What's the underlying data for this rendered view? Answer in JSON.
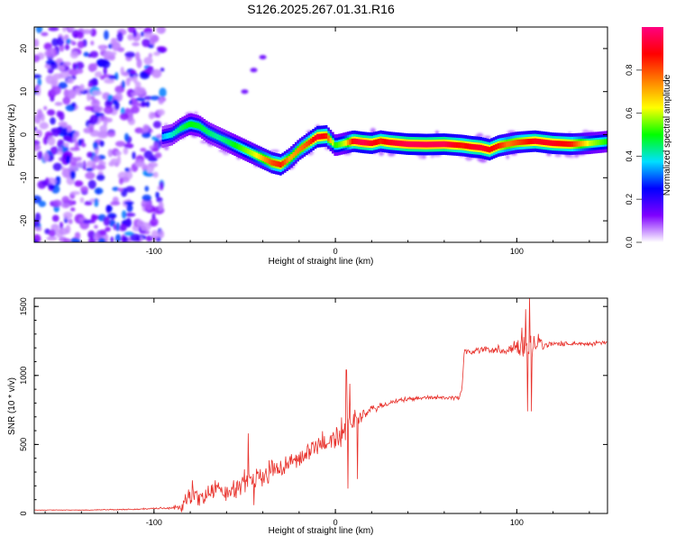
{
  "title": "S126.2025.267.01.31.R16",
  "chart_data": [
    {
      "type": "heatmap",
      "name": "spectrogram",
      "xlabel": "Height of straight line (km)",
      "ylabel": "Frequency (Hz)",
      "xlim": [
        -166,
        150
      ],
      "ylim": [
        -25,
        25
      ],
      "xticks": [
        -100,
        0,
        100
      ],
      "yticks": [
        -20,
        -10,
        0,
        10,
        20
      ],
      "xtick_labels": [
        "-100",
        "0",
        "100"
      ],
      "ytick_labels": [
        "-20",
        "-10",
        "0",
        "10",
        "20"
      ],
      "colorbar": {
        "label": "Normalized spectral amplitude",
        "range": [
          0,
          1
        ],
        "ticks": [
          0.0,
          0.2,
          0.4,
          0.6,
          0.8
        ],
        "tick_labels": [
          "0.0",
          "0.2",
          "0.4",
          "0.6",
          "0.8"
        ],
        "colors": [
          "#ffffff",
          "#7f00ff",
          "#0000ff",
          "#00e0ff",
          "#00ff00",
          "#ffff00",
          "#ff8000",
          "#ff0000",
          "#ff0080"
        ]
      },
      "noise_region_x": [
        -166,
        -95
      ],
      "ridge": {
        "x": [
          -95,
          -90,
          -85,
          -80,
          -75,
          -70,
          -65,
          -60,
          -55,
          -50,
          -45,
          -40,
          -35,
          -30,
          -25,
          -20,
          -15,
          -10,
          -5,
          0,
          5,
          10,
          15,
          20,
          25,
          30,
          40,
          50,
          60,
          70,
          75,
          80,
          85,
          90,
          95,
          100,
          110,
          120,
          130,
          140,
          150
        ],
        "frequency": [
          -0.5,
          0,
          1.5,
          2.5,
          2,
          0.5,
          -0.5,
          -1.5,
          -2.5,
          -3.5,
          -4.5,
          -5.5,
          -6.5,
          -7,
          -5.5,
          -3.5,
          -2,
          -0.5,
          -0.3,
          -2.5,
          -2,
          -1.5,
          -1.8,
          -2,
          -1.5,
          -1.8,
          -2.2,
          -2.3,
          -2.2,
          -2.5,
          -2.8,
          -3,
          -3.5,
          -2.6,
          -2.2,
          -1.8,
          -1.5,
          -2,
          -2.2,
          -2,
          -1.6
        ],
        "amplitude": [
          0.35,
          0.4,
          0.45,
          0.5,
          0.48,
          0.45,
          0.42,
          0.45,
          0.5,
          0.55,
          0.6,
          0.7,
          0.8,
          0.85,
          0.7,
          0.75,
          0.8,
          0.92,
          0.85,
          0.5,
          0.6,
          0.9,
          0.95,
          0.9,
          0.85,
          0.9,
          0.95,
          0.95,
          0.95,
          0.85,
          0.9,
          0.92,
          0.88,
          0.85,
          0.75,
          0.8,
          0.9,
          0.9,
          0.85,
          0.6,
          0.5
        ]
      },
      "artifacts": [
        {
          "x": -50,
          "frequency": 10
        },
        {
          "x": -45,
          "frequency": 15
        },
        {
          "x": -40,
          "frequency": 18
        }
      ]
    },
    {
      "type": "line",
      "name": "snr",
      "xlabel": "Height of straight line (km)",
      "ylabel": "SNR (10 * v/v)",
      "xlim": [
        -166,
        150
      ],
      "ylim": [
        0,
        1560
      ],
      "xticks": [
        -100,
        0,
        100
      ],
      "yticks": [
        0,
        500,
        1000,
        1500
      ],
      "xtick_labels": [
        "-100",
        "0",
        "100"
      ],
      "ytick_labels": [
        "0",
        "500",
        "1000",
        "1500"
      ],
      "color": "#e8312b",
      "series": [
        {
          "name": "SNR",
          "x": [
            -166,
            -140,
            -110,
            -90,
            -85,
            -80,
            -75,
            -70,
            -65,
            -60,
            -55,
            -50,
            -45,
            -40,
            -35,
            -30,
            -25,
            -20,
            -15,
            -10,
            -5,
            0,
            5,
            10,
            15,
            20,
            25,
            30,
            40,
            50,
            60,
            68,
            70,
            71,
            75,
            80,
            90,
            100,
            103,
            106,
            110,
            115,
            120,
            130,
            140,
            150
          ],
          "y": [
            25,
            25,
            30,
            40,
            55,
            130,
            110,
            150,
            180,
            140,
            170,
            260,
            230,
            250,
            340,
            310,
            380,
            400,
            430,
            500,
            520,
            540,
            610,
            680,
            710,
            750,
            780,
            800,
            830,
            840,
            840,
            840,
            920,
            1180,
            1170,
            1190,
            1180,
            1200,
            1230,
            1250,
            1250,
            1220,
            1230,
            1230,
            1230,
            1240
          ],
          "noise": [
            2,
            3,
            6,
            10,
            60,
            90,
            80,
            90,
            100,
            90,
            90,
            130,
            110,
            100,
            100,
            90,
            90,
            80,
            100,
            110,
            110,
            160,
            140,
            100,
            60,
            40,
            30,
            25,
            20,
            20,
            18,
            20,
            30,
            40,
            30,
            35,
            40,
            60,
            200,
            220,
            120,
            50,
            25,
            20,
            20,
            20
          ],
          "spikes": [
            {
              "x": -79,
              "y": 240
            },
            {
              "x": -48,
              "y": 580
            },
            {
              "x": -45,
              "y": 60
            },
            {
              "x": 6,
              "y": 1040
            },
            {
              "x": 7,
              "y": 180
            },
            {
              "x": 8,
              "y": 940
            },
            {
              "x": 12,
              "y": 250
            },
            {
              "x": 105,
              "y": 1480
            },
            {
              "x": 106,
              "y": 740
            },
            {
              "x": 107,
              "y": 1570
            },
            {
              "x": 108,
              "y": 740
            }
          ]
        }
      ]
    }
  ]
}
